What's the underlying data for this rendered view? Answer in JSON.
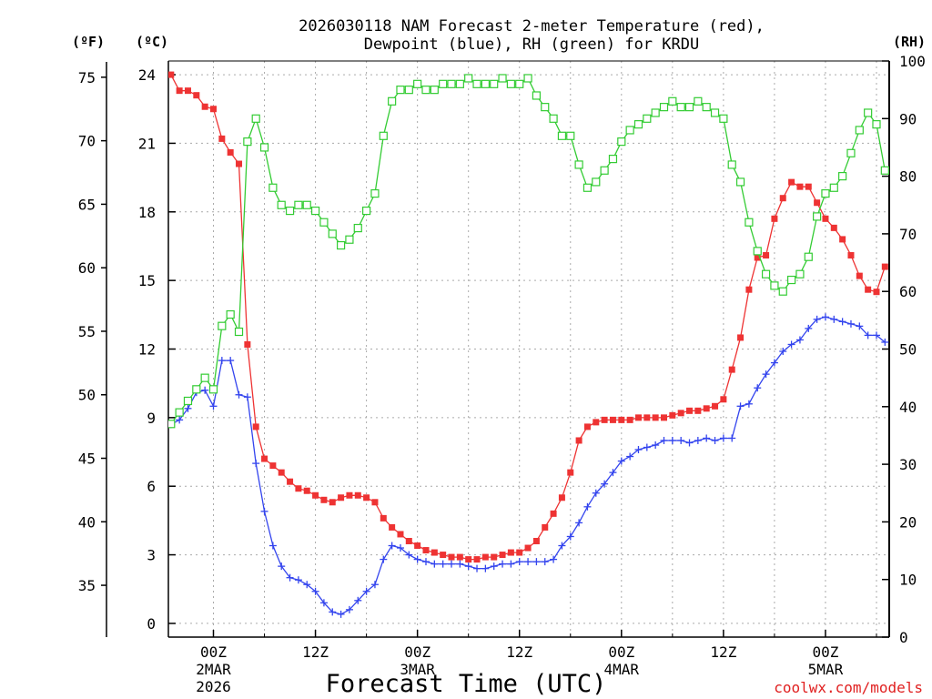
{
  "chart_data": {
    "type": "line",
    "title_line1": "2026030118 NAM Forecast 2-meter Temperature (red),",
    "title_line2": "Dewpoint (blue), RH (green) for KRDU",
    "xlabel": "Forecast Time (UTC)",
    "credit": "coolwx.com/models",
    "unit_f": "(ºF)",
    "unit_c": "(ºC)",
    "unit_rh": "(RH)",
    "x_range_hours": [
      -5.3,
      79.5
    ],
    "ylim_c": [
      -0.6,
      24.6
    ],
    "ylim_rh": [
      0,
      100
    ],
    "y_ticks_c": [
      "24",
      "21",
      "18",
      "15",
      "12",
      "9",
      "6",
      "3",
      "0"
    ],
    "y_ticks_f": [
      "75",
      "70",
      "65",
      "60",
      "55",
      "50",
      "45",
      "40",
      "35"
    ],
    "y_ticks_rh": [
      "100",
      "90",
      "80",
      "70",
      "60",
      "50",
      "40",
      "30",
      "20",
      "10",
      "0"
    ],
    "x_ticks": [
      {
        "hour": 0,
        "label": "00Z",
        "sub1": "2MAR",
        "sub2": "2026"
      },
      {
        "hour": 12,
        "label": "12Z",
        "sub1": "",
        "sub2": ""
      },
      {
        "hour": 24,
        "label": "00Z",
        "sub1": "3MAR",
        "sub2": ""
      },
      {
        "hour": 36,
        "label": "12Z",
        "sub1": "",
        "sub2": ""
      },
      {
        "hour": 48,
        "label": "00Z",
        "sub1": "4MAR",
        "sub2": ""
      },
      {
        "hour": 60,
        "label": "12Z",
        "sub1": "",
        "sub2": ""
      },
      {
        "hour": 72,
        "label": "00Z",
        "sub1": "5MAR",
        "sub2": ""
      }
    ],
    "hours": [
      -5,
      -4,
      -3,
      -2,
      -1,
      0,
      1,
      2,
      3,
      4,
      5,
      6,
      7,
      8,
      9,
      10,
      11,
      12,
      13,
      14,
      15,
      16,
      17,
      18,
      19,
      20,
      21,
      22,
      23,
      24,
      25,
      26,
      27,
      28,
      29,
      30,
      31,
      32,
      33,
      34,
      35,
      36,
      37,
      38,
      39,
      40,
      41,
      42,
      43,
      44,
      45,
      46,
      47,
      48,
      49,
      50,
      51,
      52,
      53,
      54,
      55,
      56,
      57,
      58,
      59,
      60,
      61,
      62,
      63,
      64,
      65,
      66,
      67,
      68,
      69,
      70,
      71,
      72,
      73,
      74,
      75,
      76,
      77,
      78,
      79
    ],
    "series": [
      {
        "name": "Temperature",
        "color": "#ee3333",
        "marker": "square-filled",
        "values": [
          24.0,
          23.3,
          23.3,
          23.1,
          22.6,
          22.5,
          21.2,
          20.6,
          20.1,
          12.2,
          8.6,
          7.2,
          6.9,
          6.6,
          6.2,
          5.9,
          5.8,
          5.6,
          5.4,
          5.3,
          5.5,
          5.6,
          5.6,
          5.5,
          5.3,
          4.6,
          4.2,
          3.9,
          3.6,
          3.4,
          3.2,
          3.1,
          3.0,
          2.9,
          2.9,
          2.8,
          2.8,
          2.9,
          2.9,
          3.0,
          3.1,
          3.1,
          3.3,
          3.6,
          4.2,
          4.8,
          5.5,
          6.6,
          8.0,
          8.6,
          8.8,
          8.9,
          8.9,
          8.9,
          8.9,
          9.0,
          9.0,
          9.0,
          9.0,
          9.1,
          9.2,
          9.3,
          9.3,
          9.4,
          9.5,
          9.8,
          11.1,
          12.5,
          14.6,
          16.0,
          16.1,
          17.7,
          18.6,
          19.3,
          19.1,
          19.1,
          18.4,
          17.7,
          17.3,
          16.8,
          16.1,
          15.2,
          14.6,
          14.5,
          15.6
        ]
      },
      {
        "name": "Dewpoint",
        "color": "#3344ee",
        "marker": "plus",
        "values": [
          8.7,
          8.9,
          9.4,
          10.1,
          10.2,
          9.5,
          11.5,
          11.5,
          10.0,
          9.9,
          7.0,
          4.9,
          3.4,
          2.5,
          2.0,
          1.9,
          1.7,
          1.4,
          0.9,
          0.5,
          0.4,
          0.6,
          1.0,
          1.4,
          1.7,
          2.8,
          3.4,
          3.3,
          3.0,
          2.8,
          2.7,
          2.6,
          2.6,
          2.6,
          2.6,
          2.5,
          2.4,
          2.4,
          2.5,
          2.6,
          2.6,
          2.7,
          2.7,
          2.7,
          2.7,
          2.8,
          3.4,
          3.8,
          4.4,
          5.1,
          5.7,
          6.1,
          6.6,
          7.1,
          7.3,
          7.6,
          7.7,
          7.8,
          8.0,
          8.0,
          8.0,
          7.9,
          8.0,
          8.1,
          8.0,
          8.1,
          8.1,
          9.5,
          9.6,
          10.3,
          10.9,
          11.4,
          11.9,
          12.2,
          12.4,
          12.9,
          13.3,
          13.4,
          13.3,
          13.2,
          13.1,
          13.0,
          12.6,
          12.6,
          12.3
        ]
      },
      {
        "name": "Relative Humidity",
        "color": "#33cc33",
        "marker": "square-open",
        "values": [
          37,
          39,
          41,
          43,
          45,
          43,
          54,
          56,
          53,
          86,
          90,
          85,
          78,
          75,
          74,
          75,
          75,
          74,
          72,
          70,
          68,
          69,
          71,
          74,
          77,
          87,
          93,
          95,
          95,
          96,
          95,
          95,
          96,
          96,
          96,
          97,
          96,
          96,
          96,
          97,
          96,
          96,
          97,
          94,
          92,
          90,
          87,
          87,
          82,
          78,
          79,
          81,
          83,
          86,
          88,
          89,
          90,
          91,
          92,
          93,
          92,
          92,
          93,
          92,
          91,
          90,
          82,
          79,
          72,
          67,
          63,
          61,
          60,
          62,
          63,
          66,
          73,
          77,
          78,
          80,
          84,
          88,
          91,
          89,
          81
        ]
      }
    ]
  }
}
